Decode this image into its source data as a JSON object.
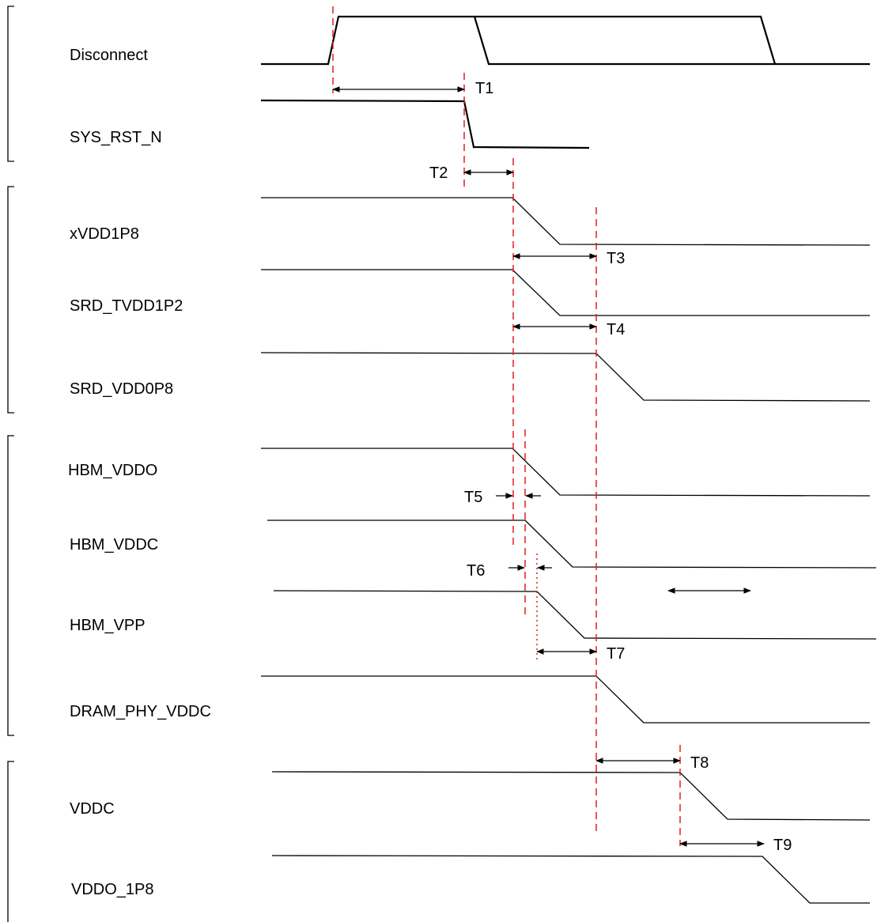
{
  "signals": [
    {
      "id": "disconnect",
      "label": "Disconnect"
    },
    {
      "id": "sys_rst_n",
      "label": "SYS_RST_N"
    },
    {
      "id": "xvdd1p8",
      "label": "xVDD1P8"
    },
    {
      "id": "srd_tvdd1p2",
      "label": "SRD_TVDD1P2"
    },
    {
      "id": "srd_vdd0p8",
      "label": "SRD_VDD0P8"
    },
    {
      "id": "hbm_vddo",
      "label": "HBM_VDDO"
    },
    {
      "id": "hbm_vddc",
      "label": "HBM_VDDC"
    },
    {
      "id": "hbm_vpp",
      "label": "HBM_VPP"
    },
    {
      "id": "dram_phy_vddc",
      "label": "DRAM_PHY_VDDC"
    },
    {
      "id": "vddc",
      "label": "VDDC"
    },
    {
      "id": "vddo_1p8",
      "label": "VDDO_1P8"
    }
  ],
  "timings": [
    {
      "id": "t1",
      "label": "T1"
    },
    {
      "id": "t2",
      "label": "T2"
    },
    {
      "id": "t3",
      "label": "T3"
    },
    {
      "id": "t4",
      "label": "T4"
    },
    {
      "id": "t5",
      "label": "T5"
    },
    {
      "id": "t6",
      "label": "T6"
    },
    {
      "id": "t7",
      "label": "T7"
    },
    {
      "id": "t8",
      "label": "T8"
    },
    {
      "id": "t9",
      "label": "T9"
    }
  ],
  "colors": {
    "waveform": "#000000",
    "guide": "#e31e1e"
  }
}
